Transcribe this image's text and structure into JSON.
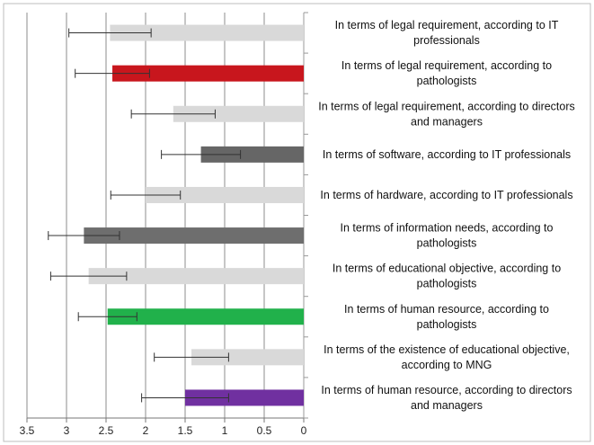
{
  "chart_data": {
    "type": "bar",
    "orientation": "horizontal",
    "x_axis": "reversed",
    "xlim": [
      0,
      3.5
    ],
    "xticks": [
      "3.5",
      "3",
      "2.5",
      "2",
      "1.5",
      "1",
      "0.5",
      "0"
    ],
    "grid": true,
    "legend": "none",
    "categories": [
      [
        "In terms of legal requirement, according to IT",
        "professionals"
      ],
      [
        "In terms of legal requirement, according to",
        "pathologists"
      ],
      [
        "In terms of legal requirement, according to directors",
        "and managers"
      ],
      [
        "In terms of software, according to IT professionals"
      ],
      [
        "In terms of hardware, according to IT professionals"
      ],
      [
        "In terms of information needs, according to",
        "pathologists"
      ],
      [
        "In terms of educational objective, according to",
        "pathologists"
      ],
      [
        "In terms of human resource, according to",
        "pathologists"
      ],
      [
        "In terms of the existence of educational objective,",
        "according to MNG"
      ],
      [
        "In terms of human resource, according to directors",
        "and managers"
      ]
    ],
    "values": [
      2.45,
      2.42,
      1.65,
      1.3,
      2.0,
      2.78,
      2.72,
      2.48,
      1.42,
      1.5
    ],
    "error": [
      0.52,
      0.47,
      0.53,
      0.5,
      0.44,
      0.45,
      0.48,
      0.37,
      0.47,
      0.55
    ],
    "colors": [
      "#d9d9d9",
      "#c8161d",
      "#d9d9d9",
      "#666666",
      "#d9d9d9",
      "#6e6e6e",
      "#d9d9d9",
      "#21b14b",
      "#d9d9d9",
      "#7030a0"
    ]
  }
}
